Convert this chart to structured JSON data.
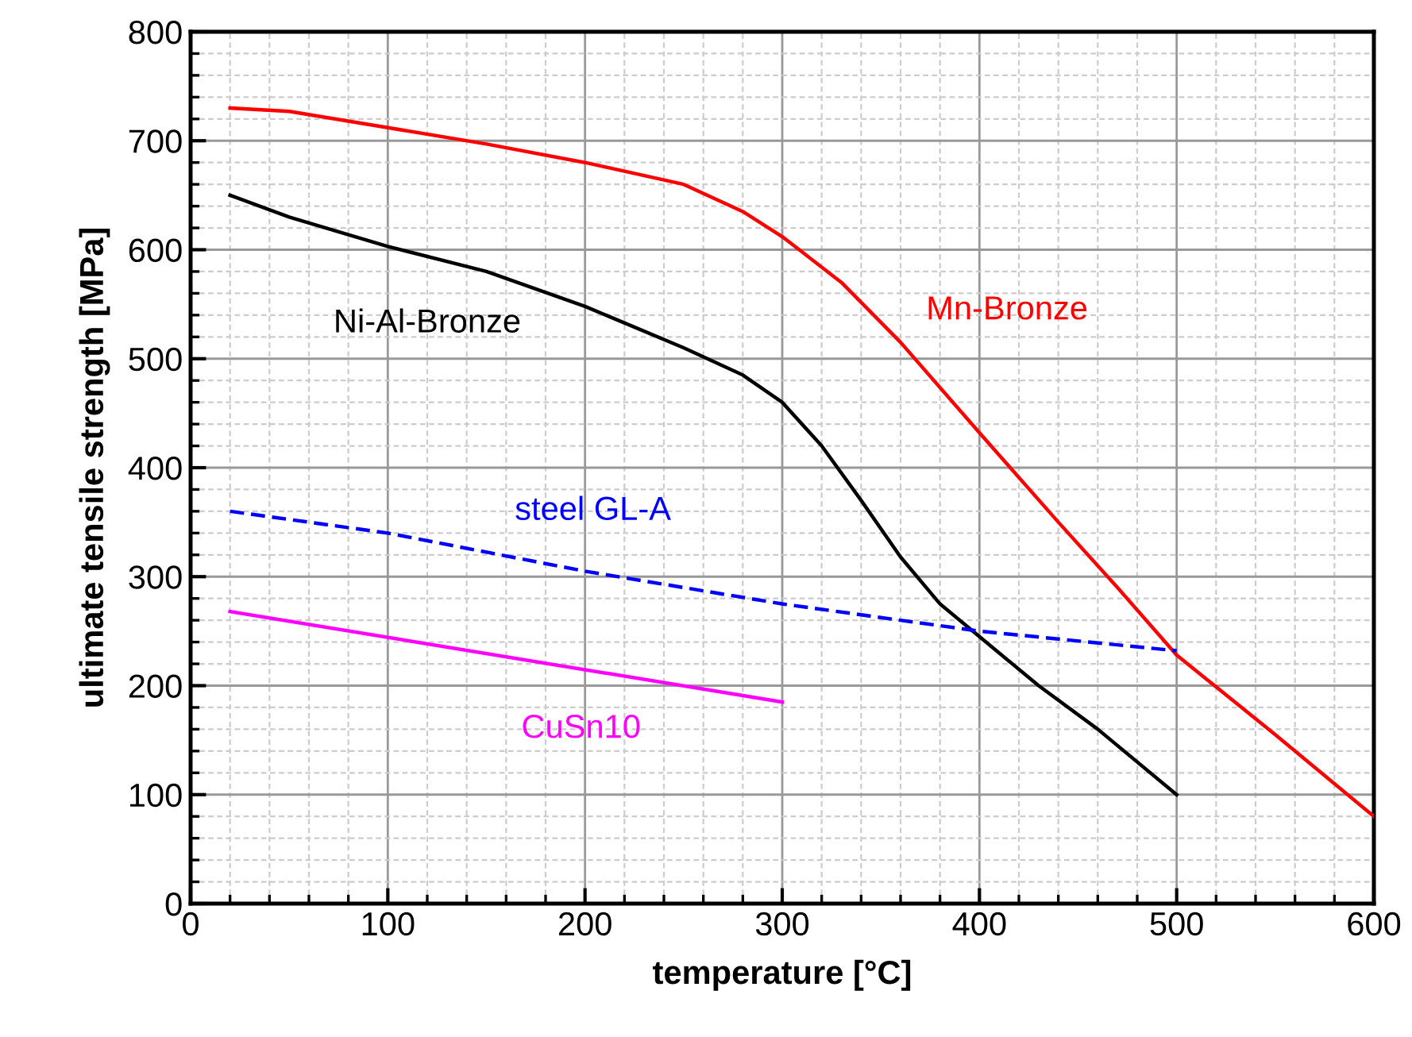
{
  "chart_data": {
    "type": "line",
    "xlabel": "temperature [°C]",
    "ylabel": "ultimate tensile strength [MPa]",
    "xlim": [
      0,
      600
    ],
    "xticks": [
      0,
      100,
      200,
      300,
      400,
      500,
      600
    ],
    "ylim": [
      0,
      800
    ],
    "yticks": [
      0,
      100,
      200,
      300,
      400,
      500,
      600,
      700,
      800
    ],
    "grid": true,
    "legend": false,
    "marker": "none",
    "series": [
      {
        "name": "Ni-Al-Bronze",
        "color": "#000000",
        "line_style": "solid",
        "x": [
          20,
          50,
          100,
          150,
          200,
          250,
          280,
          300,
          320,
          340,
          360,
          380,
          400,
          430,
          460,
          500
        ],
        "values": [
          650,
          630,
          603,
          580,
          548,
          510,
          485,
          460,
          420,
          370,
          318,
          275,
          245,
          200,
          160,
          100
        ]
      },
      {
        "name": "Mn-Bronze",
        "color": "#ff0000",
        "line_style": "solid",
        "x": [
          20,
          50,
          100,
          150,
          200,
          250,
          280,
          300,
          330,
          360,
          400,
          440,
          470,
          500,
          550,
          600
        ],
        "values": [
          730,
          727,
          712,
          697,
          680,
          660,
          635,
          612,
          570,
          515,
          432,
          350,
          290,
          228,
          155,
          80
        ]
      },
      {
        "name": "steel GL-A",
        "color": "#0000ff",
        "line_style": "dashed",
        "x": [
          20,
          100,
          200,
          300,
          400,
          500
        ],
        "values": [
          360,
          340,
          305,
          275,
          250,
          232
        ]
      },
      {
        "name": "CuSn10",
        "color": "#ff00ff",
        "line_style": "solid",
        "x": [
          20,
          300
        ],
        "values": [
          268,
          185
        ]
      }
    ]
  }
}
